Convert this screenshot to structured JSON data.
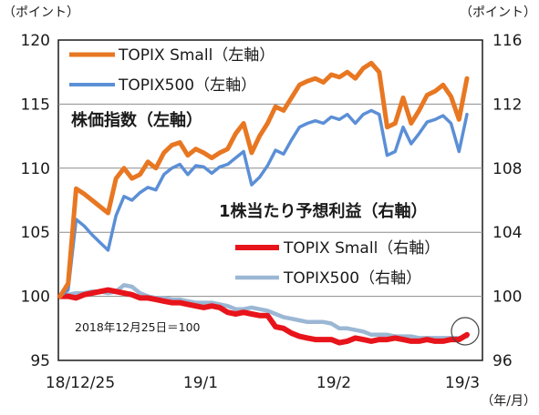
{
  "chart_data": {
    "type": "line",
    "units": {
      "left": "（ポイント）",
      "right": "（ポイント）",
      "x": "（年/月）"
    },
    "x_ticks": [
      "18/12/25",
      "19/1",
      "19/2",
      "19/3"
    ],
    "y_left": {
      "range": [
        95,
        120
      ],
      "ticks": [
        "95",
        "100",
        "105",
        "110",
        "115",
        "120"
      ]
    },
    "y_right": {
      "range": [
        96,
        116
      ],
      "ticks": [
        "96",
        "100",
        "104",
        "108",
        "112",
        "116"
      ]
    },
    "legend_top": [
      "TOPIX Small（左軸）",
      "TOPIX500（左軸）"
    ],
    "legend_bottom": [
      "TOPIX Small（右軸）",
      "TOPIX500（右軸）"
    ],
    "annotations": {
      "price": "株価指数（左軸）",
      "eps": "1株当たり予想利益（右軸）",
      "base": "2018年12月25日＝100"
    },
    "series": [
      {
        "name": "TOPIX Small（左軸）",
        "axis": "left",
        "color": "#E87722",
        "values": [
          100,
          101,
          108.4,
          108,
          107.5,
          107,
          106.5,
          109.2,
          110,
          109.2,
          109.5,
          110.5,
          110,
          111.2,
          111.8,
          112,
          111,
          111.5,
          111.2,
          110.8,
          111.2,
          111.5,
          112.7,
          113.5,
          111.2,
          112.5,
          113.5,
          114.8,
          114.5,
          115.5,
          116.5,
          116.8,
          117,
          116.7,
          117.3,
          117.1,
          117.5,
          117,
          117.8,
          118.2,
          117.5,
          113.2,
          113.5,
          115.5,
          113.5,
          114.5,
          115.7,
          116,
          116.5,
          115.6,
          113.8,
          117
        ]
      },
      {
        "name": "TOPIX500（左軸）",
        "axis": "left",
        "color": "#5B8FD6",
        "values": [
          100,
          100.5,
          106,
          105.5,
          104.8,
          104.2,
          103.6,
          106.3,
          107.8,
          107.5,
          108.1,
          108.5,
          108.3,
          109.5,
          110,
          110.3,
          109.5,
          110.2,
          110.1,
          109.6,
          110.1,
          110.3,
          110.8,
          111.3,
          108.7,
          109.3,
          110.2,
          111.4,
          111.1,
          112.2,
          113.2,
          113.5,
          113.7,
          113.5,
          114,
          113.8,
          114.2,
          113.5,
          114.2,
          114.5,
          114.2,
          111,
          111.3,
          113.2,
          111.9,
          112.7,
          113.6,
          113.8,
          114.1,
          113.5,
          111.3,
          114.2
        ]
      },
      {
        "name": "TOPIX Small（右軸）",
        "axis": "right",
        "color": "#E8141B",
        "values": [
          100,
          100,
          99.9,
          100.1,
          100.2,
          100.3,
          100.4,
          100.3,
          100.2,
          100.1,
          99.9,
          99.9,
          99.8,
          99.7,
          99.6,
          99.6,
          99.5,
          99.4,
          99.3,
          99.4,
          99.3,
          99,
          98.9,
          99,
          98.9,
          98.8,
          98.8,
          98.1,
          98,
          97.7,
          97.5,
          97.4,
          97.3,
          97.3,
          97.3,
          97.1,
          97.2,
          97.4,
          97.3,
          97.2,
          97.3,
          97.3,
          97.4,
          97.3,
          97.2,
          97.2,
          97.3,
          97.2,
          97.2,
          97.3,
          97.3,
          97.6
        ]
      },
      {
        "name": "TOPIX500（右軸）",
        "axis": "right",
        "color": "#9BB7D4",
        "values": [
          100,
          100.1,
          100.2,
          100.2,
          100.3,
          100.3,
          100.2,
          100.3,
          100.7,
          100.6,
          100.2,
          100,
          99.9,
          99.9,
          99.8,
          99.8,
          99.7,
          99.6,
          99.6,
          99.6,
          99.5,
          99.4,
          99.2,
          99.2,
          99.3,
          99.2,
          99.1,
          98.9,
          98.7,
          98.6,
          98.5,
          98.4,
          98.4,
          98.4,
          98.3,
          98,
          98,
          97.9,
          97.8,
          97.6,
          97.6,
          97.6,
          97.5,
          97.5,
          97.5,
          97.4,
          97.4,
          97.4,
          97.4,
          97.4,
          97.4,
          97.5
        ]
      }
    ]
  }
}
